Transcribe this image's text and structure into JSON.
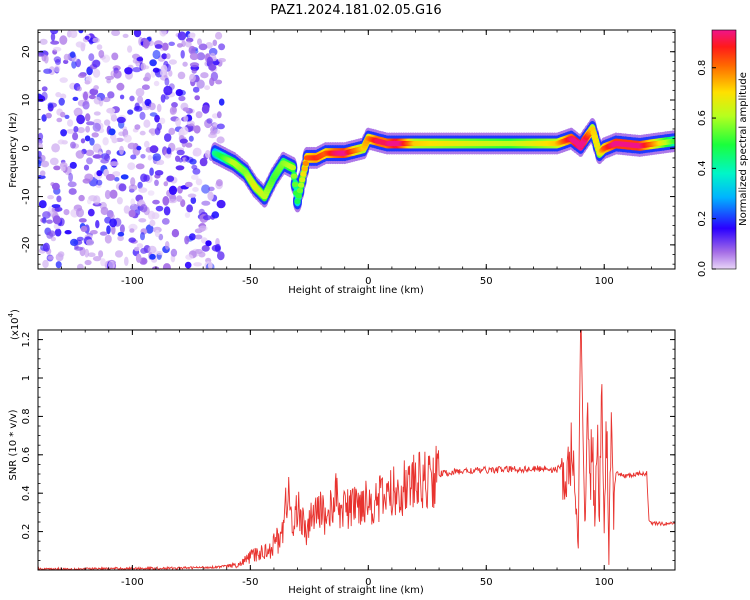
{
  "figure_title": "PAZ1.2024.181.02.05.G16",
  "chart_data": [
    {
      "type": "heatmap",
      "title": "",
      "xlabel": "Height of straight line (km)",
      "ylabel": "Frequency (Hz)",
      "xlim": [
        -140,
        130
      ],
      "ylim": [
        -25,
        24.5
      ],
      "xticks": [
        -100,
        -50,
        0,
        50,
        100
      ],
      "yticks": [
        -20,
        -10,
        0,
        10,
        20
      ],
      "colorbar": {
        "label": "Normalized spectral amplitude",
        "range": [
          0.0,
          0.95
        ],
        "ticks": [
          0.0,
          0.2,
          0.4,
          0.6,
          0.8
        ],
        "colormap": "rainbow (purple-blue-cyan-green-yellow-red-magenta)"
      },
      "noise_region": {
        "x_range": [
          -140,
          -60
        ],
        "y_range": [
          -25,
          24.5
        ],
        "amplitude_range": [
          0.0,
          0.2
        ]
      },
      "ridge": {
        "x": [
          -65,
          -57,
          -52,
          -48,
          -44,
          -40,
          -36,
          -32,
          -30,
          -26,
          -22,
          -18,
          -14,
          -10,
          -6,
          -2,
          0,
          4,
          8,
          12,
          20,
          40,
          60,
          80,
          86,
          90,
          95,
          98,
          100,
          105,
          115,
          130
        ],
        "frequency": [
          -1,
          -3,
          -5,
          -8,
          -10,
          -6,
          -3,
          -4,
          -11,
          -2,
          -2,
          -1,
          -1,
          -1,
          -0.5,
          0,
          2,
          1.5,
          1,
          1,
          1,
          1,
          1,
          1,
          2,
          0.5,
          4,
          -1,
          0,
          1,
          0.5,
          1.5
        ],
        "amplitude": [
          0.3,
          0.5,
          0.45,
          0.55,
          0.5,
          0.4,
          0.45,
          0.5,
          0.35,
          0.7,
          0.75,
          0.7,
          0.8,
          0.85,
          0.7,
          0.6,
          0.65,
          0.8,
          0.8,
          0.9,
          0.6,
          0.55,
          0.5,
          0.6,
          0.8,
          0.95,
          0.6,
          0.55,
          0.7,
          0.85,
          0.85,
          0.4
        ]
      }
    },
    {
      "type": "line",
      "title": "",
      "xlabel": "Height of straight line (km)",
      "ylabel": "SNR (10 * v/v)",
      "y_multiplier": "(x10",
      "y_multiplier_exp": "4",
      "xlim": [
        -140,
        130
      ],
      "ylim": [
        0,
        12500
      ],
      "xticks": [
        -100,
        -50,
        0,
        50,
        100
      ],
      "yticks": [
        0.2,
        0.4,
        0.6,
        0.8,
        1.0,
        1.2
      ],
      "series": [
        {
          "color": "#e8332f",
          "x": [
            -140,
            -120,
            -100,
            -80,
            -65,
            -55,
            -50,
            -45,
            -40,
            -36,
            -34,
            -32,
            -30,
            -28,
            -26,
            -24,
            -22,
            -20,
            -18,
            -16,
            -14,
            -12,
            -10,
            -8,
            -6,
            -4,
            -2,
            0,
            5,
            10,
            15,
            20,
            25,
            30,
            40,
            50,
            60,
            70,
            75,
            80,
            82,
            84,
            86,
            88,
            89,
            90,
            91,
            92,
            93,
            94,
            95,
            96,
            97,
            98,
            99,
            100,
            101,
            102,
            103,
            104,
            105,
            110,
            115,
            118,
            119,
            120,
            125,
            130
          ],
          "y": [
            50,
            60,
            80,
            100,
            150,
            250,
            700,
            900,
            1300,
            2200,
            4400,
            1800,
            3500,
            2600,
            1700,
            3000,
            2800,
            3300,
            2600,
            3200,
            3900,
            3100,
            3400,
            3000,
            3600,
            3300,
            3800,
            3500,
            3700,
            4000,
            4300,
            4500,
            4700,
            5000,
            5150,
            5200,
            5250,
            5250,
            5300,
            5200,
            5500,
            4200,
            6500,
            3300,
            1000,
            12500,
            6000,
            2800,
            9000,
            4000,
            7500,
            2000,
            6800,
            3000,
            11000,
            1500,
            8000,
            300,
            9500,
            2500,
            5000,
            4900,
            5000,
            5050,
            2500,
            2450,
            2400,
            2450
          ]
        }
      ]
    }
  ]
}
